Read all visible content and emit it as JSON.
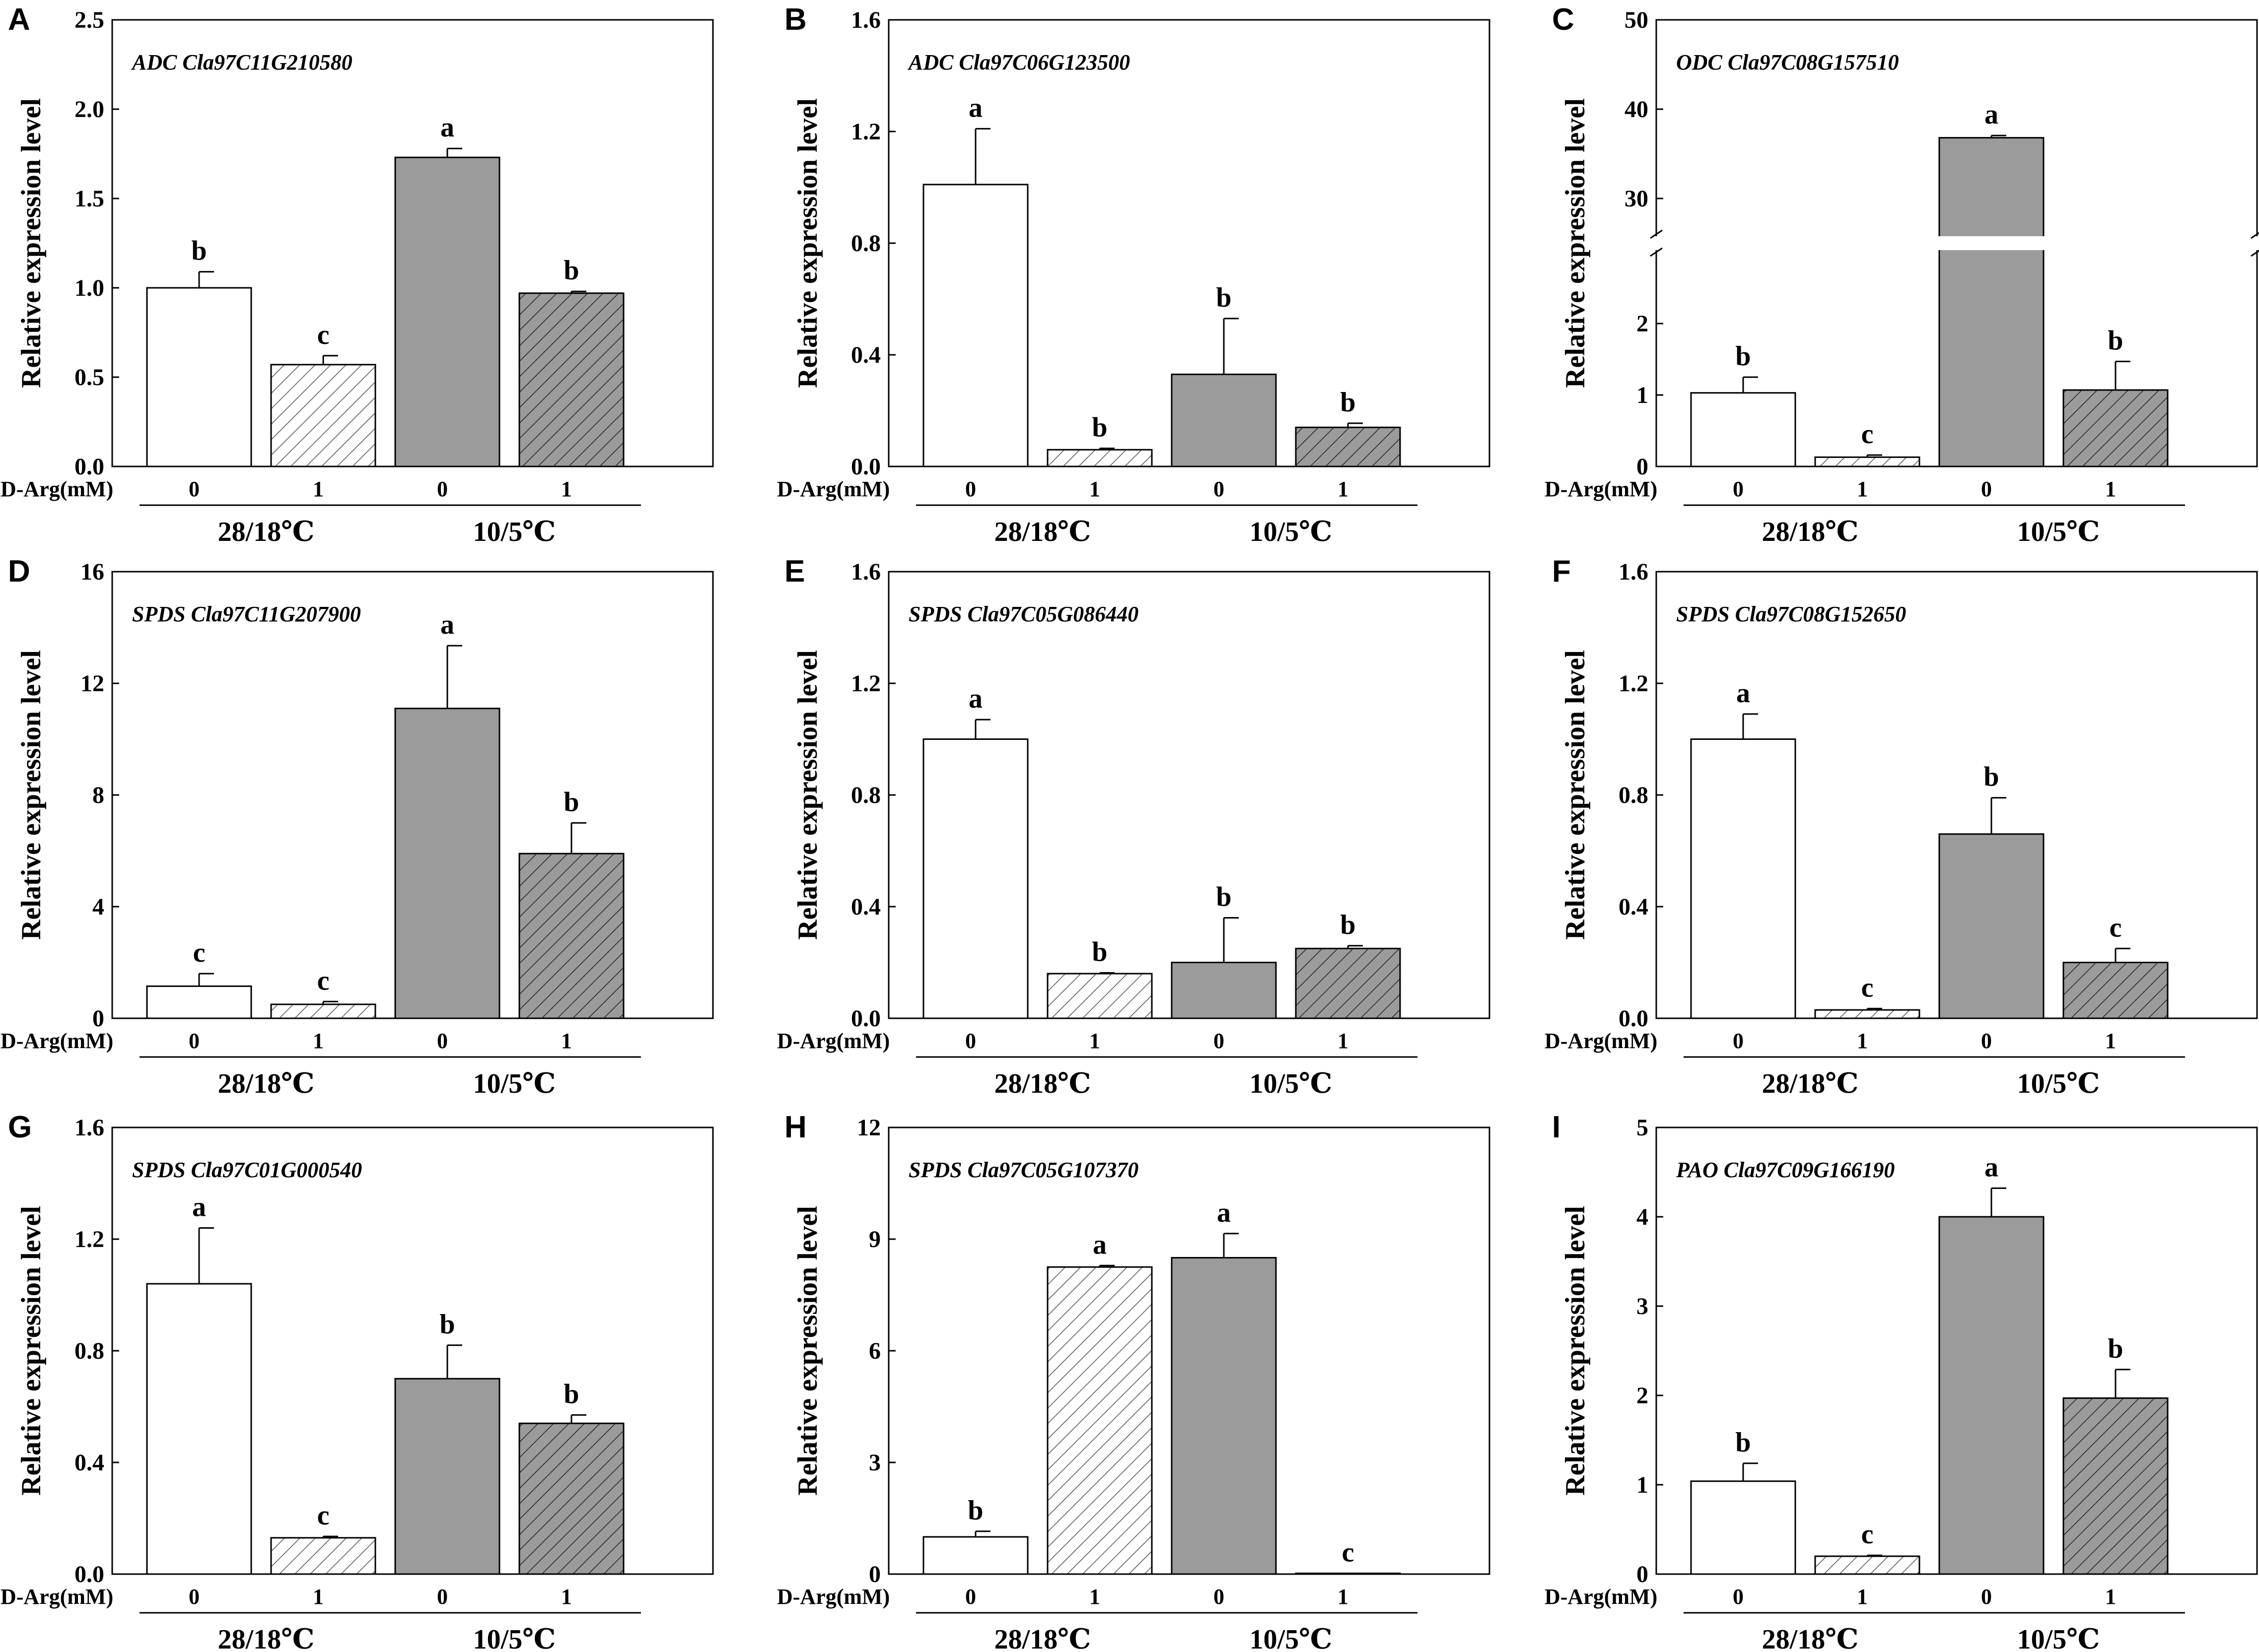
{
  "colors": {
    "axis": "#000000",
    "white_bar": "#ffffff",
    "grey_bar": "#9b9b9b",
    "hatch_light": "#ffffff",
    "hatch_dark": "#9b9b9b"
  },
  "chart_data": [
    {
      "panel": "A",
      "type": "bar",
      "title": "ADC Cla97C11G210580",
      "ylabel": "Relative expression level",
      "ylim": [
        0,
        2.5
      ],
      "ticks": [
        "0.0",
        "0.5",
        "1.0",
        "1.5",
        "2.0",
        "2.5"
      ],
      "xlabel_prefix": "D-Arg(mM)",
      "categories": [
        "0",
        "1",
        "0",
        "1"
      ],
      "groups": [
        "28/18℃",
        "10/5℃"
      ],
      "values": [
        1.0,
        0.57,
        1.73,
        0.97
      ],
      "errors": [
        0.09,
        0.05,
        0.05,
        0.01
      ],
      "significance": [
        "b",
        "c",
        "a",
        "b"
      ]
    },
    {
      "panel": "B",
      "type": "bar",
      "title": "ADC Cla97C06G123500",
      "ylabel": "Relative expression level",
      "ylim": [
        0,
        1.6
      ],
      "ticks": [
        "0.0",
        "0.4",
        "0.8",
        "1.2",
        "1.6"
      ],
      "xlabel_prefix": "D-Arg(mM)",
      "categories": [
        "0",
        "1",
        "0",
        "1"
      ],
      "groups": [
        "28/18℃",
        "10/5℃"
      ],
      "values": [
        1.01,
        0.06,
        0.33,
        0.14
      ],
      "errors": [
        0.2,
        0.005,
        0.2,
        0.015
      ],
      "significance": [
        "a",
        "b",
        "b",
        "b"
      ]
    },
    {
      "panel": "C",
      "type": "bar",
      "title": "ODC Cla97C08G157510",
      "ylabel": "Relative expression level",
      "ylim": [
        0,
        50
      ],
      "ticks": [
        "0",
        "1",
        "2",
        "30",
        "40",
        "50"
      ],
      "axis_break": {
        "lower": [
          0,
          3
        ],
        "upper": [
          26,
          50
        ]
      },
      "xlabel_prefix": "D-Arg(mM)",
      "categories": [
        "0",
        "1",
        "0",
        "1"
      ],
      "groups": [
        "28/18℃",
        "10/5℃"
      ],
      "values": [
        1.03,
        0.13,
        36.8,
        1.07
      ],
      "errors": [
        0.22,
        0.03,
        0.25,
        0.4
      ],
      "significance": [
        "b",
        "c",
        "a",
        "b"
      ]
    },
    {
      "panel": "D",
      "type": "bar",
      "title": "SPDS Cla97C11G207900",
      "ylabel": "Relative expression level",
      "ylim": [
        0,
        16
      ],
      "ticks": [
        "0",
        "4",
        "8",
        "12",
        "16"
      ],
      "xlabel_prefix": "D-Arg(mM)",
      "categories": [
        "0",
        "1",
        "0",
        "1"
      ],
      "groups": [
        "28/18℃",
        "10/5℃"
      ],
      "values": [
        1.15,
        0.5,
        11.1,
        5.9
      ],
      "errors": [
        0.45,
        0.1,
        2.25,
        1.1
      ],
      "significance": [
        "c",
        "c",
        "a",
        "b"
      ]
    },
    {
      "panel": "E",
      "type": "bar",
      "title": "SPDS Cla97C05G086440",
      "ylabel": "Relative expression level",
      "ylim": [
        0,
        1.6
      ],
      "ticks": [
        "0.0",
        "0.4",
        "0.8",
        "1.2",
        "1.6"
      ],
      "xlabel_prefix": "D-Arg(mM)",
      "categories": [
        "0",
        "1",
        "0",
        "1"
      ],
      "groups": [
        "28/18℃",
        "10/5℃"
      ],
      "values": [
        1.0,
        0.16,
        0.2,
        0.25
      ],
      "errors": [
        0.07,
        0.003,
        0.16,
        0.01
      ],
      "significance": [
        "a",
        "b",
        "b",
        "b"
      ]
    },
    {
      "panel": "F",
      "type": "bar",
      "title": "SPDS Cla97C08G152650",
      "ylabel": "Relative expression level",
      "ylim": [
        0,
        1.6
      ],
      "ticks": [
        "0.0",
        "0.4",
        "0.8",
        "1.2",
        "1.6"
      ],
      "xlabel_prefix": "D-Arg(mM)",
      "categories": [
        "0",
        "1",
        "0",
        "1"
      ],
      "groups": [
        "28/18℃",
        "10/5℃"
      ],
      "values": [
        1.0,
        0.03,
        0.66,
        0.2
      ],
      "errors": [
        0.09,
        0.005,
        0.13,
        0.05
      ],
      "significance": [
        "a",
        "c",
        "b",
        "c"
      ]
    },
    {
      "panel": "G",
      "type": "bar",
      "title": "SPDS Cla97C01G000540",
      "ylabel": "Relative expression level",
      "ylim": [
        0,
        1.6
      ],
      "ticks": [
        "0.0",
        "0.4",
        "0.8",
        "1.2",
        "1.6"
      ],
      "xlabel_prefix": "D-Arg(mM)",
      "categories": [
        "0",
        "1",
        "0",
        "1"
      ],
      "groups": [
        "28/18℃",
        "10/5℃"
      ],
      "values": [
        1.04,
        0.13,
        0.7,
        0.54
      ],
      "errors": [
        0.2,
        0.005,
        0.12,
        0.03
      ],
      "significance": [
        "a",
        "c",
        "b",
        "b"
      ]
    },
    {
      "panel": "H",
      "type": "bar",
      "title": "SPDS Cla97C05G107370",
      "ylabel": "Relative expression level",
      "ylim": [
        0,
        12
      ],
      "ticks": [
        "0",
        "3",
        "6",
        "9",
        "12"
      ],
      "xlabel_prefix": "D-Arg(mM)",
      "categories": [
        "0",
        "1",
        "0",
        "1"
      ],
      "groups": [
        "28/18℃",
        "10/5℃"
      ],
      "values": [
        1.0,
        8.25,
        8.5,
        0.02
      ],
      "errors": [
        0.15,
        0.04,
        0.65,
        0.0
      ],
      "significance": [
        "b",
        "a",
        "a",
        "c"
      ]
    },
    {
      "panel": "I",
      "type": "bar",
      "title": "PAO Cla97C09G166190",
      "ylabel": "Relative expression level",
      "ylim": [
        0,
        5
      ],
      "ticks": [
        "0",
        "1",
        "2",
        "3",
        "4",
        "5"
      ],
      "xlabel_prefix": "D-Arg(mM)",
      "categories": [
        "0",
        "1",
        "0",
        "1"
      ],
      "groups": [
        "28/18℃",
        "10/5℃"
      ],
      "values": [
        1.04,
        0.2,
        4.0,
        1.97
      ],
      "errors": [
        0.2,
        0.01,
        0.32,
        0.32
      ],
      "significance": [
        "b",
        "c",
        "a",
        "b"
      ]
    }
  ]
}
